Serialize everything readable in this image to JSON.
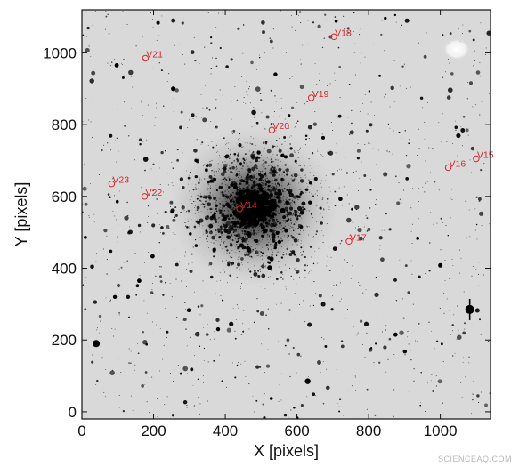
{
  "chart_data": {
    "type": "scatter",
    "title": "",
    "xlabel": "X [pixels]",
    "ylabel": "Y [pixels]",
    "xlim": [
      0,
      1140
    ],
    "ylim": [
      -20,
      1120
    ],
    "xticks": [
      0,
      200,
      400,
      600,
      800,
      1000
    ],
    "yticks": [
      0,
      200,
      400,
      600,
      800,
      1000
    ],
    "background": "grayscale star field (globular cluster image)",
    "marker_color": "#d8262b",
    "series": [
      {
        "name": "",
        "points": [
          {
            "label": "V14",
            "x": 440,
            "y": 565
          },
          {
            "label": "V15",
            "x": 1100,
            "y": 705
          },
          {
            "label": "V16",
            "x": 1022,
            "y": 680
          },
          {
            "label": "V17",
            "x": 745,
            "y": 475
          },
          {
            "label": "V18",
            "x": 703,
            "y": 1045
          },
          {
            "label": "V19",
            "x": 640,
            "y": 875
          },
          {
            "label": "V20",
            "x": 530,
            "y": 785
          },
          {
            "label": "V21",
            "x": 177,
            "y": 985
          },
          {
            "label": "V22",
            "x": 175,
            "y": 600
          },
          {
            "label": "V23",
            "x": 83,
            "y": 635
          }
        ]
      }
    ]
  },
  "watermark": "SCIENCEAQ.COM"
}
